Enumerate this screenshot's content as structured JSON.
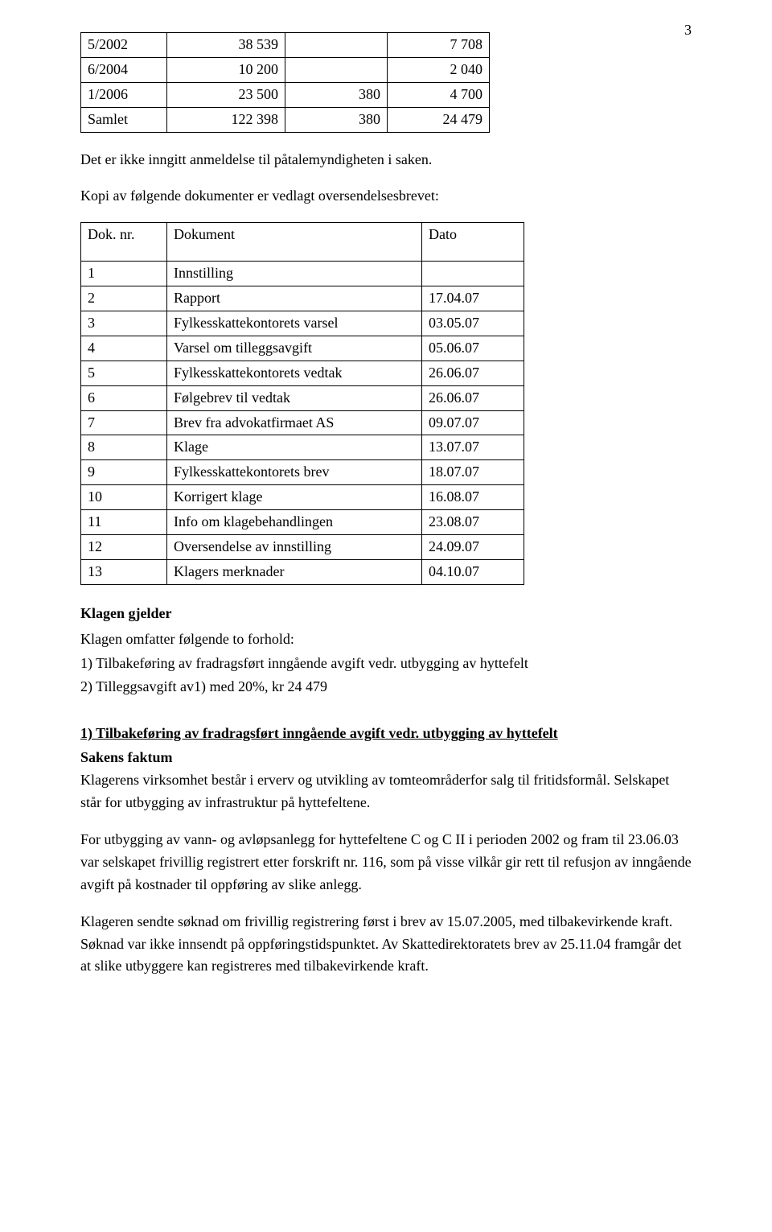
{
  "page_number": "3",
  "table1": {
    "rows": [
      [
        "5/2002",
        "38 539",
        "",
        "7 708"
      ],
      [
        "6/2004",
        "10 200",
        "",
        "2 040"
      ],
      [
        "1/2006",
        "23 500",
        "380",
        "4 700"
      ],
      [
        "Samlet",
        "122 398",
        "380",
        "24 479"
      ]
    ]
  },
  "p1": "Det er ikke inngitt anmeldelse til påtalemyndigheten i saken.",
  "p2": "Kopi av følgende dokumenter er vedlagt oversendelsesbrevet:",
  "table2": {
    "header": [
      "Dok. nr.",
      "Dokument",
      "Dato"
    ],
    "rows": [
      [
        "1",
        "Innstilling",
        ""
      ],
      [
        "2",
        "Rapport",
        "17.04.07"
      ],
      [
        "3",
        "Fylkesskattekontorets varsel",
        "03.05.07"
      ],
      [
        "4",
        "Varsel om tilleggsavgift",
        "05.06.07"
      ],
      [
        "5",
        "Fylkesskattekontorets vedtak",
        "26.06.07"
      ],
      [
        "6",
        "Følgebrev til vedtak",
        "26.06.07"
      ],
      [
        "7",
        "Brev fra advokatfirmaet AS",
        "09.07.07"
      ],
      [
        "8",
        "Klage",
        "13.07.07"
      ],
      [
        "9",
        "Fylkesskattekontorets brev",
        "18.07.07"
      ],
      [
        "10",
        "Korrigert klage",
        "16.08.07"
      ],
      [
        "11",
        "Info om klagebehandlingen",
        "23.08.07"
      ],
      [
        "12",
        "Oversendelse av innstilling",
        "24.09.07"
      ],
      [
        "13",
        "Klagers merknader",
        "04.10.07"
      ]
    ]
  },
  "h_klagen_gjelder": "Klagen gjelder",
  "p3": "Klagen omfatter følgende to forhold:",
  "p4": "1) Tilbakeføring av fradragsført inngående avgift vedr. utbygging av hyttefelt",
  "p5": "2) Tilleggsavgift av1) med 20%, kr 24 479",
  "h_section1": "1) Tilbakeføring av fradragsført  inngående avgift vedr. utbygging av hyttefelt",
  "h_sakens_faktum": "Sakens faktum",
  "p6": "Klagerens virksomhet består i erverv og utvikling av tomteområderfor salg til fritidsformål. Selskapet står for utbygging av infrastruktur på hyttefeltene.",
  "p7": "For utbygging av vann- og avløpsanlegg for hyttefeltene C og C II i perioden 2002 og fram til 23.06.03 var selskapet frivillig registrert etter forskrift nr. 116, som på visse vilkår gir rett til refusjon av inngående avgift på kostnader til oppføring av slike anlegg.",
  "p8": "Klageren sendte søknad om frivillig registrering først i brev av 15.07.2005, med tilbakevirkende kraft. Søknad var ikke innsendt på oppføringstidspunktet. Av Skattedirektoratets brev av 25.11.04 framgår det at slike utbyggere kan registreres med tilbakevirkende kraft."
}
